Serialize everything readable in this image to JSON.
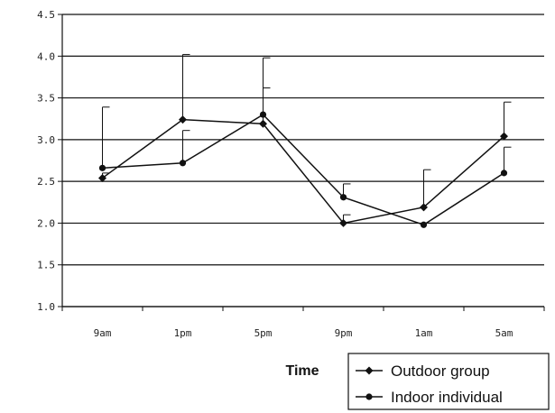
{
  "chart_data": {
    "type": "line",
    "categories": [
      "9am",
      "1pm",
      "5pm",
      "9pm",
      "1am",
      "5am"
    ],
    "xlabel": "Time",
    "ylabel": "",
    "ylim": [
      1.0,
      4.5
    ],
    "yticks": [
      "1.0",
      "1.5",
      "2.0",
      "2.5",
      "3.0",
      "3.5",
      "4.0",
      "4.5"
    ],
    "grid": true,
    "legend_position": "bottom-right",
    "series": [
      {
        "name": "Outdoor group",
        "marker": "diamond",
        "values": [
          2.54,
          3.24,
          3.19,
          2.0,
          2.19,
          3.04
        ],
        "error_upper": [
          2.6,
          4.02,
          3.62,
          2.1,
          2.64,
          3.45
        ]
      },
      {
        "name": "Indoor individual",
        "marker": "circle",
        "values": [
          2.66,
          2.72,
          3.3,
          2.31,
          1.98,
          2.6
        ],
        "error_upper": [
          3.39,
          3.11,
          3.98,
          2.47,
          2.0,
          2.91
        ]
      }
    ]
  }
}
